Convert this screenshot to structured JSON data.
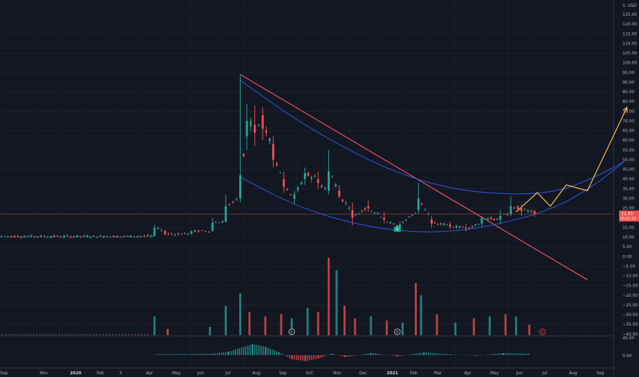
{
  "chart_data": {
    "type": "candlestick",
    "currency_label": "1. USD",
    "price_axis": {
      "ticks": [
        125,
        120,
        115,
        110,
        105,
        100,
        95,
        90,
        85,
        80,
        75,
        70,
        65,
        60,
        55,
        50,
        45,
        40,
        35,
        30,
        25,
        20,
        15,
        10,
        5,
        0,
        -5,
        -10,
        -15,
        -20,
        -25,
        -30,
        -35,
        -40
      ],
      "tick_labels": [
        "125.00",
        "120.00",
        "115.00",
        "110.00",
        "105.00",
        "100.00",
        "95.00",
        "90.00",
        "85.00",
        "80.00",
        "75.00",
        "70.00",
        "65.00",
        "60.00",
        "55.00",
        "50.00",
        "45.00",
        "40.00",
        "35.00",
        "30.00",
        "25.00",
        "20.00",
        "15.00",
        "10.00",
        "5.00",
        "0.00",
        "−5.00",
        "−10.00",
        "−15.00",
        "−20.00",
        "−25.00",
        "−30.00",
        "−35.00",
        "−40.00"
      ]
    },
    "indicator_axis": {
      "tick_labels": [
        "40.00",
        "0.00"
      ]
    },
    "time_axis": {
      "labels": [
        "Sep",
        "Nov",
        "2020",
        "Feb",
        "3",
        "Apr",
        "May",
        "Jun",
        "Jul",
        "Aug",
        "Sep",
        "Oct",
        "Nov",
        "Dec",
        "2021",
        "Feb",
        "Mar",
        "Apr",
        "May",
        "Jun",
        "Jul",
        "Aug",
        "Sep"
      ],
      "bold": [
        "2020",
        "2021"
      ]
    },
    "last_price": {
      "label": "21.95",
      "countdown": "05:02:14",
      "value": 21.95
    },
    "price_series": [
      {
        "m": 0,
        "o": 10.2,
        "h": 10.8,
        "l": 9.9,
        "c": 10.4
      },
      {
        "m": 4,
        "o": 10.4,
        "h": 10.9,
        "l": 10.0,
        "c": 10.3
      },
      {
        "m": 5.8,
        "o": 10.6,
        "h": 16.5,
        "l": 10.4,
        "c": 14.8
      },
      {
        "m": 6.2,
        "o": 13.2,
        "h": 13.8,
        "l": 11.0,
        "c": 11.6
      },
      {
        "m": 7.2,
        "o": 11.8,
        "h": 13.5,
        "l": 11.3,
        "c": 13.0
      },
      {
        "m": 8,
        "o": 13.2,
        "h": 20.0,
        "l": 12.8,
        "c": 17.5
      },
      {
        "m": 8.5,
        "o": 18.0,
        "h": 32.0,
        "l": 17.5,
        "c": 26.0
      },
      {
        "m": 9.05,
        "o": 30.0,
        "h": 94.0,
        "l": 28.0,
        "c": 42.0
      },
      {
        "m": 9.3,
        "o": 62.0,
        "h": 79.0,
        "l": 55.0,
        "c": 70.0
      },
      {
        "m": 9.6,
        "o": 68.0,
        "h": 78.0,
        "l": 57.0,
        "c": 64.0
      },
      {
        "m": 9.9,
        "o": 73.0,
        "h": 77.0,
        "l": 60.0,
        "c": 66.0
      },
      {
        "m": 10.3,
        "o": 58.0,
        "h": 62.0,
        "l": 46.0,
        "c": 50.0
      },
      {
        "m": 10.7,
        "o": 40.0,
        "h": 44.0,
        "l": 33.0,
        "c": 36.0
      },
      {
        "m": 11.1,
        "o": 30.0,
        "h": 34.0,
        "l": 27.0,
        "c": 32.0
      },
      {
        "m": 11.5,
        "o": 40.0,
        "h": 46.0,
        "l": 37.0,
        "c": 43.0
      },
      {
        "m": 12,
        "o": 40.0,
        "h": 44.0,
        "l": 35.0,
        "c": 38.0
      },
      {
        "m": 12.4,
        "o": 34.0,
        "h": 55.0,
        "l": 32.0,
        "c": 44.0
      },
      {
        "m": 12.8,
        "o": 34.0,
        "h": 37.0,
        "l": 30.0,
        "c": 31.0
      },
      {
        "m": 13.3,
        "o": 24.0,
        "h": 28.0,
        "l": 16.0,
        "c": 20.0
      },
      {
        "m": 13.9,
        "o": 26.0,
        "h": 29.0,
        "l": 23.0,
        "c": 25.0
      },
      {
        "m": 14.5,
        "o": 20.0,
        "h": 23.0,
        "l": 17.0,
        "c": 19.0
      },
      {
        "m": 15.1,
        "o": 15.0,
        "h": 18.0,
        "l": 14.5,
        "c": 16.5
      },
      {
        "m": 15.8,
        "o": 24.0,
        "h": 38.0,
        "l": 22.0,
        "c": 30.0
      },
      {
        "m": 16.3,
        "o": 19.0,
        "h": 21.0,
        "l": 15.0,
        "c": 17.0
      },
      {
        "m": 17.0,
        "o": 16.5,
        "h": 18.0,
        "l": 14.0,
        "c": 15.5
      },
      {
        "m": 17.6,
        "o": 15.0,
        "h": 17.0,
        "l": 13.0,
        "c": 14.8
      },
      {
        "m": 18.2,
        "o": 17.0,
        "h": 21.0,
        "l": 15.5,
        "c": 20.0
      },
      {
        "m": 18.9,
        "o": 19.0,
        "h": 24.0,
        "l": 17.0,
        "c": 21.0
      },
      {
        "m": 19.3,
        "o": 22.0,
        "h": 31.0,
        "l": 21.0,
        "c": 26.0
      },
      {
        "m": 19.7,
        "o": 25.0,
        "h": 27.0,
        "l": 21.0,
        "c": 23.5
      },
      {
        "m": 20.2,
        "o": 23.5,
        "h": 24.0,
        "l": 20.5,
        "c": 21.95
      }
    ],
    "volume_series": [
      {
        "m": 5.8,
        "v": 0.45,
        "up": true
      },
      {
        "m": 6.3,
        "v": 0.15,
        "up": false
      },
      {
        "m": 7.9,
        "v": 0.2,
        "up": true
      },
      {
        "m": 8.5,
        "v": 0.7,
        "up": true
      },
      {
        "m": 9.05,
        "v": 1.0,
        "up": true
      },
      {
        "m": 9.4,
        "v": 0.55,
        "up": false
      },
      {
        "m": 10.0,
        "v": 0.45,
        "up": false
      },
      {
        "m": 10.6,
        "v": 0.5,
        "up": false
      },
      {
        "m": 11.0,
        "v": 0.4,
        "up": true
      },
      {
        "m": 11.6,
        "v": 0.65,
        "up": true
      },
      {
        "m": 12.0,
        "v": 0.55,
        "up": false
      },
      {
        "m": 12.4,
        "v": 1.85,
        "up": false
      },
      {
        "m": 12.7,
        "v": 1.55,
        "up": true
      },
      {
        "m": 13.0,
        "v": 0.7,
        "up": false
      },
      {
        "m": 13.4,
        "v": 0.4,
        "up": false
      },
      {
        "m": 14.0,
        "v": 0.45,
        "up": true
      },
      {
        "m": 14.6,
        "v": 0.35,
        "up": false
      },
      {
        "m": 15.2,
        "v": 0.3,
        "up": true
      },
      {
        "m": 15.7,
        "v": 1.25,
        "up": false
      },
      {
        "m": 15.9,
        "v": 0.95,
        "up": true
      },
      {
        "m": 16.5,
        "v": 0.5,
        "up": false
      },
      {
        "m": 17.2,
        "v": 0.3,
        "up": true
      },
      {
        "m": 17.9,
        "v": 0.4,
        "up": false
      },
      {
        "m": 18.5,
        "v": 0.45,
        "up": true
      },
      {
        "m": 19.1,
        "v": 0.5,
        "up": false
      },
      {
        "m": 19.5,
        "v": 0.45,
        "up": true
      },
      {
        "m": 20.0,
        "v": 0.25,
        "up": false
      }
    ],
    "earnings_markers": [
      {
        "m": 11.0,
        "label": "E",
        "color": "#b2b5be"
      },
      {
        "m": 15.0,
        "label": "E",
        "color": "#b2b5be"
      },
      {
        "m": 20.5,
        "label": "E",
        "color": "#f23645"
      }
    ],
    "dividend_marker": {
      "m": 15.0,
      "label": "↑"
    },
    "drawings": {
      "downtrend_line": {
        "color": "#f7525f",
        "from": {
          "m": 9.05,
          "price": 94.0
        },
        "to": {
          "m": 22.2,
          "price": -12.0
        }
      },
      "upper_arc": {
        "color": "#2962ff",
        "points": [
          [
            9.05,
            91
          ],
          [
            11,
            72
          ],
          [
            13,
            56
          ],
          [
            15,
            43
          ],
          [
            17,
            35
          ],
          [
            19,
            32
          ],
          [
            21,
            33
          ],
          [
            22.5,
            41
          ],
          [
            23.6,
            49
          ]
        ]
      },
      "lower_arc": {
        "color": "#2962ff",
        "points": [
          [
            9.05,
            41
          ],
          [
            11,
            27
          ],
          [
            13,
            18
          ],
          [
            15,
            13
          ],
          [
            17,
            12.5
          ],
          [
            19,
            17
          ],
          [
            21,
            25
          ],
          [
            22.5,
            37
          ],
          [
            23.6,
            49
          ]
        ]
      },
      "projection": {
        "color": "#ffb74d",
        "points": [
          [
            19.5,
            23
          ],
          [
            20.3,
            33
          ],
          [
            20.8,
            26
          ],
          [
            21.4,
            37
          ],
          [
            22.2,
            34
          ],
          [
            23.7,
            77
          ]
        ]
      }
    }
  }
}
